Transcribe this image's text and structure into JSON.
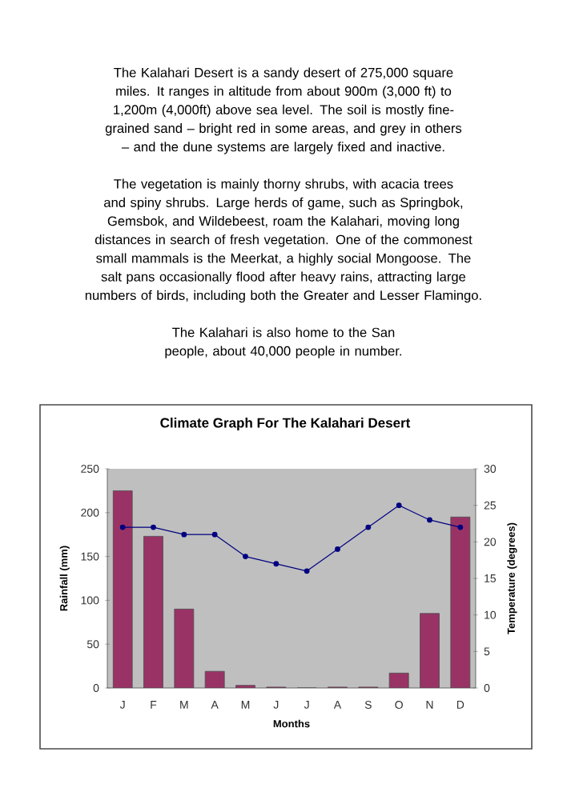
{
  "chart_data": {
    "type": "bar",
    "title": "Climate Graph For The Kalahari Desert",
    "annotations": [
      "The Kalahari Desert is a sandy desert of 275,000 square miles. It ranges in altitude from about 900m (3,000 ft) to 1,200m (4,000ft) above sea level. The soil is mostly fine-grained sand – bright red in some areas, and grey in others – and the dune systems are largely fixed and inactive.",
      "The vegetation is mainly thorny shrubs, with acacia trees and spiny shrubs. Large herds of game, such as Springbok, Gemsbok, and Wildebeest, roam the Kalahari, moving long distances in search of fresh vegetation. One of the commonest small mammals is the Meerkat, a highly social Mongoose. The salt pans occasionally flood after heavy rains, attracting large numbers of birds, including both the Greater and Lesser Flamingo.",
      "The Kalahari is also home to the San people, about 40,000 people in number."
    ],
    "xlabel": "Months",
    "ylabel": "Rainfall (mm)",
    "y2label": "Temperature (degrees)",
    "categories": [
      "J",
      "F",
      "M",
      "A",
      "M",
      "J",
      "J",
      "A",
      "S",
      "O",
      "N",
      "D"
    ],
    "series": [
      {
        "color": "#993366",
        "values": [
          225,
          173,
          90,
          19,
          3,
          1,
          0,
          1,
          1,
          17,
          85,
          195
        ]
      },
      {
        "type": "line",
        "axis": "y2",
        "color": "#000080",
        "marker": "circle",
        "values": [
          22,
          22,
          21,
          21,
          18,
          17,
          16,
          19,
          22,
          25,
          23,
          22
        ]
      }
    ],
    "ylim": [
      0,
      250
    ],
    "yticks": [
      0,
      50,
      100,
      150,
      200,
      250
    ],
    "y2lim": [
      0,
      30
    ],
    "y2ticks": [
      0,
      5,
      10,
      15,
      20,
      25,
      30
    ],
    "grid": false
  }
}
